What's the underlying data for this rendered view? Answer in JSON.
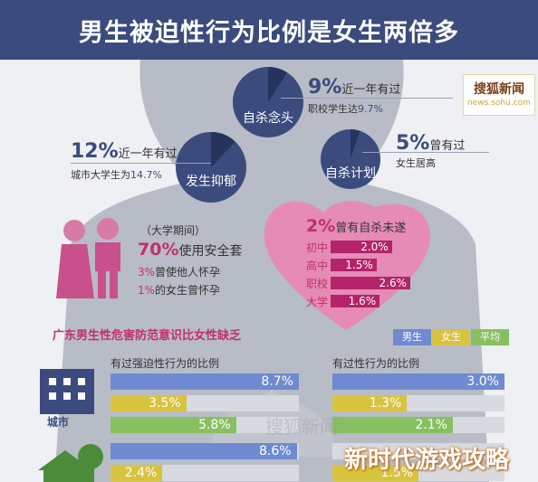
{
  "header": {
    "title": "男生被迫性行为比例是女生两倍多"
  },
  "logo": {
    "line1": "搜狐新闻",
    "line2": "news.sohu.com"
  },
  "pies": {
    "suicidal_thought": {
      "label": "自杀念头",
      "pct": "9%",
      "text": "近一年有过",
      "sub_prefix": "职校学生达",
      "sub_val": "9.7%",
      "value": 9
    },
    "depression": {
      "label": "发生抑郁",
      "pct": "12%",
      "text": "近一年有过",
      "sub_prefix": "城市大学生为",
      "sub_val": "14.7%",
      "value": 12
    },
    "suicide_plan": {
      "label": "自杀计划",
      "pct": "5%",
      "text": "曾有过",
      "sub": "女生居高",
      "value": 5
    }
  },
  "condom": {
    "period": "（大学期间）",
    "pct": "70%",
    "text": "使用安全套",
    "l1_val": "3%",
    "l1_text": "曾使他人怀孕",
    "l2_val": "1%",
    "l2_text": "的女生曾怀孕"
  },
  "heart": {
    "pct": "2%",
    "text": "曾有自杀未遂",
    "rows": [
      {
        "label": "初中",
        "value": "2.0%",
        "num": 2.0
      },
      {
        "label": "高中",
        "value": "1.5%",
        "num": 1.5
      },
      {
        "label": "职校",
        "value": "2.6%",
        "num": 2.6
      },
      {
        "label": "大学",
        "value": "1.6%",
        "num": 1.6
      }
    ]
  },
  "section": {
    "title": "广东男生性危害防范意识比女性缺乏",
    "city_label": "城市"
  },
  "legend": [
    {
      "label": "男生",
      "color": "#6f8ad0"
    },
    {
      "label": "女生",
      "color": "#d8c33f"
    },
    {
      "label": "平均",
      "color": "#86c060"
    }
  ],
  "watermark": {
    "sohu": "搜狐新闻",
    "game": "新时代游戏攻略"
  },
  "chart_data": [
    {
      "type": "bar",
      "title": "有过强迫性行为的比例",
      "categories": [
        "城市"
      ],
      "series": [
        {
          "name": "男生",
          "values": [
            8.7
          ]
        },
        {
          "name": "女生",
          "values": [
            3.5
          ]
        },
        {
          "name": "平均",
          "values": [
            5.8
          ]
        }
      ],
      "labels": [
        "8.7%",
        "3.5%",
        "5.8%"
      ]
    },
    {
      "type": "bar",
      "title": "有过性行为的比例",
      "categories": [
        "城市"
      ],
      "series": [
        {
          "name": "男生",
          "values": [
            3.0
          ]
        },
        {
          "name": "女生",
          "values": [
            1.3
          ]
        },
        {
          "name": "平均",
          "values": [
            2.1
          ]
        }
      ],
      "labels": [
        "3.0%",
        "1.3%",
        "2.1%"
      ]
    },
    {
      "type": "bar",
      "title": "",
      "categories": [
        ""
      ],
      "series": [
        {
          "name": "男生",
          "values": [
            8.6
          ]
        },
        {
          "name": "女生",
          "values": [
            2.4
          ]
        }
      ],
      "labels": [
        "8.6%",
        "2.4%"
      ]
    },
    {
      "type": "bar",
      "title": "",
      "categories": [
        ""
      ],
      "series": [
        {
          "name": "男生",
          "values": [
            null
          ]
        },
        {
          "name": "女生",
          "values": [
            1.5
          ]
        }
      ],
      "labels": [
        "",
        "1.5%"
      ]
    }
  ]
}
